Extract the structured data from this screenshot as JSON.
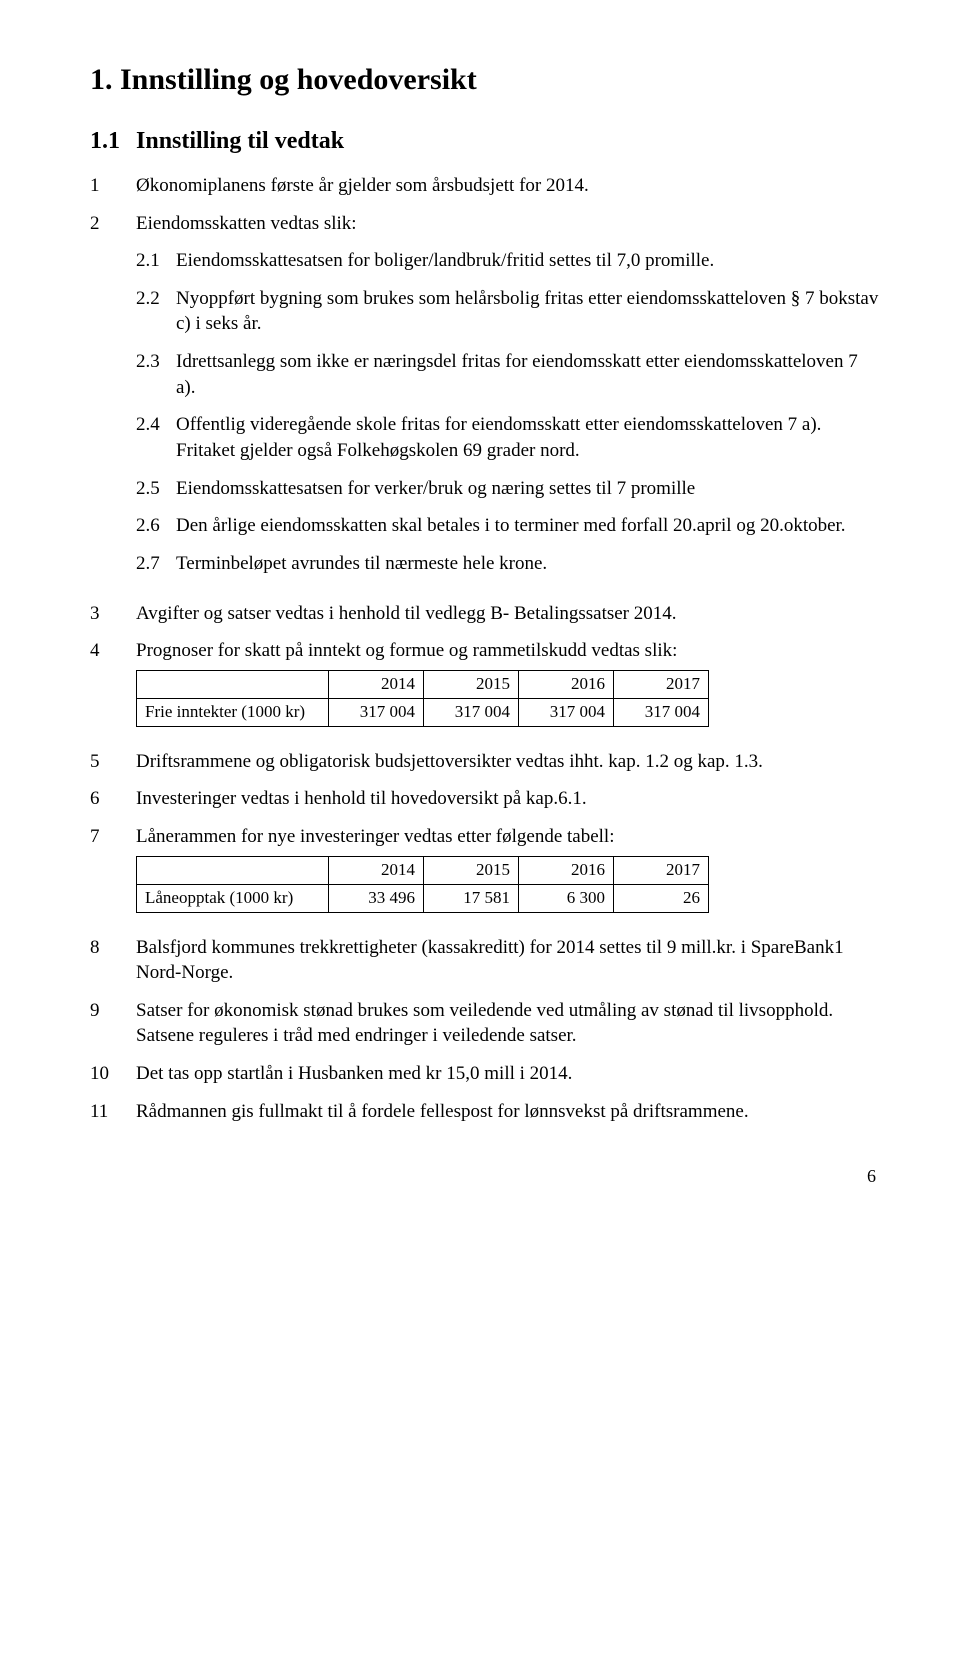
{
  "h1": "1. Innstilling og hovedoversikt",
  "h2_num": "1.1",
  "h2_text": "Innstilling til vedtak",
  "items": {
    "1": {
      "num": "1",
      "text": "Økonomiplanens første år gjelder som årsbudsjett for 2014."
    },
    "2": {
      "num": "2",
      "text": "Eiendomsskatten vedtas slik:"
    },
    "3": {
      "num": "3",
      "text": "Avgifter og satser vedtas i henhold til vedlegg B- Betalingssatser 2014."
    },
    "4": {
      "num": "4",
      "text": "Prognoser for skatt på inntekt og formue og rammetilskudd vedtas slik:"
    },
    "5": {
      "num": "5",
      "text": "Driftsrammene og obligatorisk budsjettoversikter vedtas ihht. kap. 1.2 og kap. 1.3."
    },
    "6": {
      "num": "6",
      "text": "Investeringer vedtas i henhold til hovedoversikt på kap.6.1."
    },
    "7": {
      "num": "7",
      "text": "Lånerammen for nye investeringer vedtas etter følgende tabell:"
    },
    "8": {
      "num": "8",
      "text": "Balsfjord kommunes trekkrettigheter (kassakreditt) for 2014 settes til 9 mill.kr. i SpareBank1 Nord-Norge."
    },
    "9": {
      "num": "9",
      "text": "Satser for økonomisk stønad brukes som veiledende ved utmåling av stønad til livsopphold. Satsene reguleres i tråd med endringer i veiledende satser."
    },
    "10": {
      "num": "10",
      "text": "Det tas opp startlån i Husbanken med kr 15,0 mill i 2014."
    },
    "11": {
      "num": "11",
      "text": "Rådmannen gis fullmakt til å fordele fellespost for lønnsvekst på driftsrammene."
    }
  },
  "sub": {
    "21": {
      "num": "2.1",
      "text": "Eiendomsskattesatsen for boliger/landbruk/fritid settes til 7,0 promille."
    },
    "22": {
      "num": "2.2",
      "text": "Nyoppført bygning som brukes som helårsbolig fritas etter eiendomsskatteloven § 7 bokstav c) i seks år."
    },
    "23": {
      "num": "2.3",
      "text": "Idrettsanlegg som ikke er næringsdel fritas for eiendomsskatt etter eiendomsskatteloven 7 a)."
    },
    "24": {
      "num": "2.4",
      "text": "Offentlig videregående skole fritas for eiendomsskatt etter eiendomsskatteloven 7 a). Fritaket gjelder også Folkehøgskolen 69 grader nord."
    },
    "25": {
      "num": "2.5",
      "text": "Eiendomsskattesatsen for verker/bruk og næring settes til 7 promille"
    },
    "26": {
      "num": "2.6",
      "text": "Den årlige eiendomsskatten skal betales i to terminer med forfall 20.april og 20.oktober."
    },
    "27": {
      "num": "2.7",
      "text": "Terminbeløpet avrundes til nærmeste hele krone."
    }
  },
  "table1": {
    "headers": [
      "2014",
      "2015",
      "2016",
      "2017"
    ],
    "row_label": "Frie inntekter (1000 kr)",
    "row": [
      "317 004",
      "317 004",
      "317 004",
      "317 004"
    ]
  },
  "table2": {
    "headers": [
      "2014",
      "2015",
      "2016",
      "2017"
    ],
    "row_label": "Låneopptak (1000 kr)",
    "row": [
      "33 496",
      "17 581",
      "6 300",
      "26"
    ]
  },
  "page_number": "6"
}
